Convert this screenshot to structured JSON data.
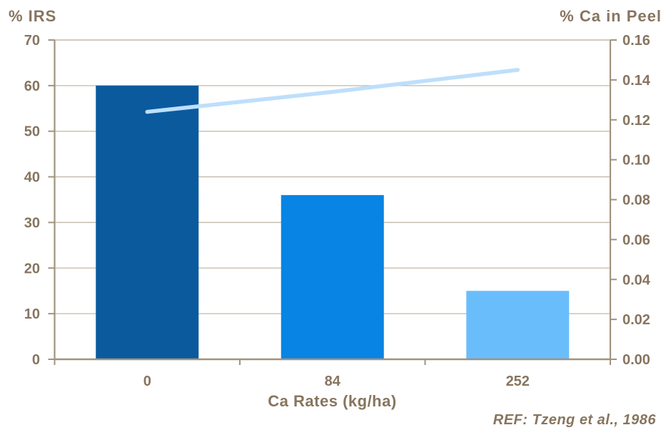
{
  "chart_data": {
    "type": "combo",
    "categories": [
      "0",
      "84",
      "252"
    ],
    "xlabel": "Ca Rates (kg/ha)",
    "series": [
      {
        "name": "% IRS",
        "type": "bar",
        "axis": "left",
        "values": [
          60,
          36,
          15
        ]
      },
      {
        "name": "% Ca in Peel",
        "type": "line",
        "axis": "right",
        "values": [
          0.124,
          0.134,
          0.145
        ]
      }
    ],
    "left_axis": {
      "title": "% IRS",
      "min": 0,
      "max": 70,
      "step": 10,
      "tick_labels": [
        "0",
        "10",
        "20",
        "30",
        "40",
        "50",
        "60",
        "70"
      ]
    },
    "right_axis": {
      "title": "% Ca in Peel",
      "min": 0,
      "max": 0.16,
      "step": 0.02,
      "tick_labels": [
        "0.00",
        "0.02",
        "0.04",
        "0.06",
        "0.08",
        "0.10",
        "0.12",
        "0.14",
        "0.16"
      ]
    },
    "grid": "horizontal",
    "legend": "none"
  },
  "annotation": {
    "ref": "REF: Tzeng et al., 1986"
  },
  "colors": {
    "bar_colors": [
      "#0B5A9E",
      "#0884E4",
      "#6ABDFB"
    ],
    "line": "#BDDFFB",
    "axis": "#A1937F",
    "grid": "#C3B8AA",
    "text": "#87755F",
    "background": "#FFFFFF"
  }
}
